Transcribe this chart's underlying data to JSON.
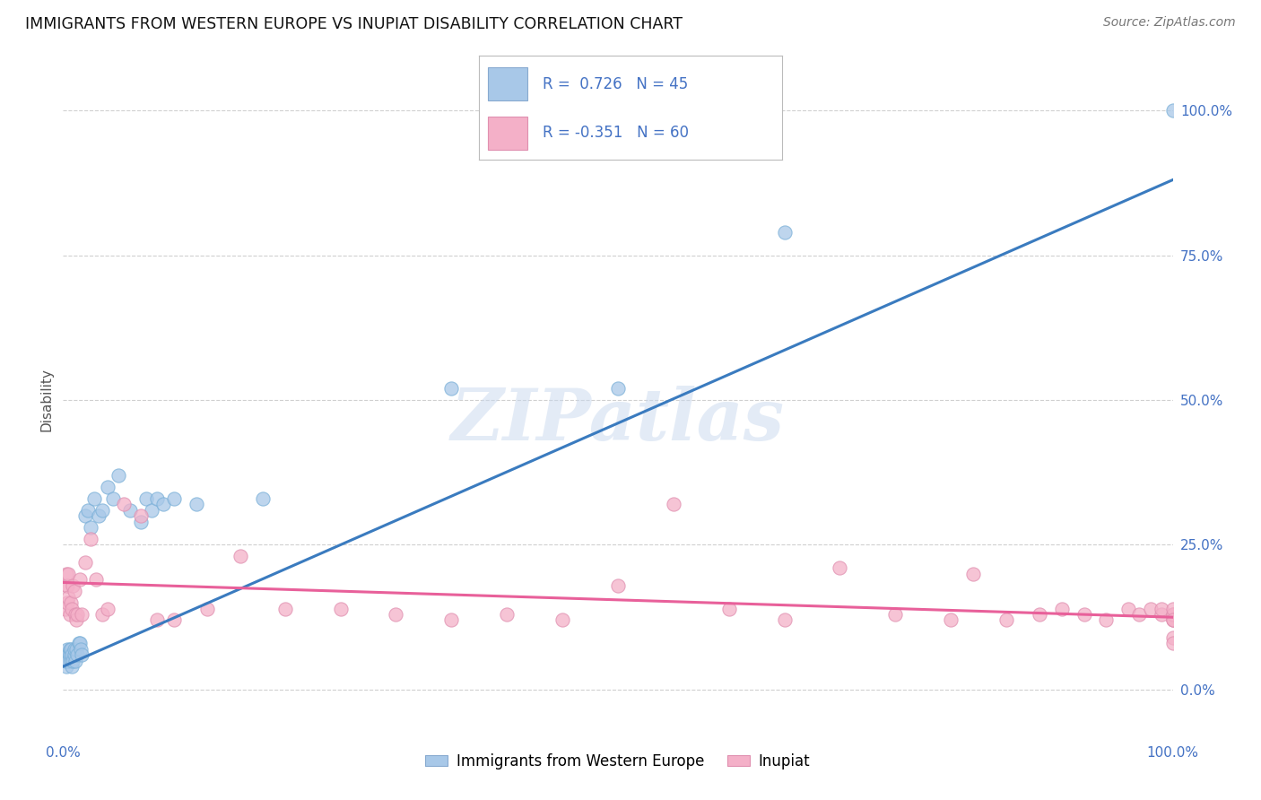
{
  "title": "IMMIGRANTS FROM WESTERN EUROPE VS INUPIAT DISABILITY CORRELATION CHART",
  "source": "Source: ZipAtlas.com",
  "ylabel": "Disability",
  "watermark": "ZIPatlas",
  "blue_R": 0.726,
  "blue_N": 45,
  "pink_R": -0.351,
  "pink_N": 60,
  "blue_color": "#a8c8e8",
  "pink_color": "#f4b0c8",
  "blue_line_color": "#3a7bbf",
  "pink_line_color": "#e8609a",
  "legend_label_blue": "Immigrants from Western Europe",
  "legend_label_pink": "Inupiat",
  "blue_scatter_x": [
    0.002,
    0.003,
    0.003,
    0.004,
    0.004,
    0.005,
    0.005,
    0.006,
    0.006,
    0.007,
    0.007,
    0.008,
    0.008,
    0.009,
    0.01,
    0.01,
    0.011,
    0.012,
    0.013,
    0.014,
    0.015,
    0.016,
    0.017,
    0.02,
    0.022,
    0.025,
    0.028,
    0.032,
    0.035,
    0.04,
    0.045,
    0.05,
    0.06,
    0.07,
    0.075,
    0.08,
    0.085,
    0.09,
    0.1,
    0.12,
    0.18,
    0.35,
    0.5,
    0.65,
    1.0
  ],
  "blue_scatter_y": [
    0.05,
    0.04,
    0.06,
    0.05,
    0.07,
    0.06,
    0.05,
    0.07,
    0.06,
    0.05,
    0.07,
    0.06,
    0.04,
    0.05,
    0.06,
    0.07,
    0.05,
    0.07,
    0.06,
    0.08,
    0.08,
    0.07,
    0.06,
    0.3,
    0.31,
    0.28,
    0.33,
    0.3,
    0.31,
    0.35,
    0.33,
    0.37,
    0.31,
    0.29,
    0.33,
    0.31,
    0.33,
    0.32,
    0.33,
    0.32,
    0.33,
    0.52,
    0.52,
    0.79,
    1.0
  ],
  "pink_scatter_x": [
    0.002,
    0.003,
    0.003,
    0.004,
    0.004,
    0.005,
    0.005,
    0.006,
    0.007,
    0.008,
    0.009,
    0.01,
    0.011,
    0.012,
    0.013,
    0.015,
    0.017,
    0.02,
    0.025,
    0.03,
    0.035,
    0.04,
    0.055,
    0.07,
    0.085,
    0.1,
    0.13,
    0.16,
    0.2,
    0.25,
    0.3,
    0.35,
    0.4,
    0.45,
    0.5,
    0.55,
    0.6,
    0.65,
    0.7,
    0.75,
    0.8,
    0.82,
    0.85,
    0.88,
    0.9,
    0.92,
    0.94,
    0.96,
    0.97,
    0.98,
    0.99,
    0.99,
    1.0,
    1.0,
    1.0,
    1.0,
    1.0,
    1.0,
    1.0,
    1.0
  ],
  "pink_scatter_y": [
    0.14,
    0.18,
    0.2,
    0.15,
    0.18,
    0.16,
    0.2,
    0.13,
    0.15,
    0.14,
    0.18,
    0.17,
    0.13,
    0.12,
    0.13,
    0.19,
    0.13,
    0.22,
    0.26,
    0.19,
    0.13,
    0.14,
    0.32,
    0.3,
    0.12,
    0.12,
    0.14,
    0.23,
    0.14,
    0.14,
    0.13,
    0.12,
    0.13,
    0.12,
    0.18,
    0.32,
    0.14,
    0.12,
    0.21,
    0.13,
    0.12,
    0.2,
    0.12,
    0.13,
    0.14,
    0.13,
    0.12,
    0.14,
    0.13,
    0.14,
    0.13,
    0.14,
    0.12,
    0.13,
    0.12,
    0.13,
    0.14,
    0.09,
    0.12,
    0.08
  ],
  "blue_line_x": [
    0.0,
    1.0
  ],
  "blue_line_y": [
    0.04,
    0.88
  ],
  "pink_line_x": [
    0.0,
    1.0
  ],
  "pink_line_y": [
    0.185,
    0.125
  ],
  "xlim": [
    0.0,
    1.0
  ],
  "ylim": [
    -0.08,
    1.08
  ],
  "right_yticks": [
    0.0,
    0.25,
    0.5,
    0.75,
    1.0
  ],
  "right_yticklabels": [
    "0.0%",
    "25.0%",
    "50.0%",
    "75.0%",
    "100.0%"
  ],
  "background_color": "#ffffff",
  "grid_color": "#d0d0d0",
  "title_color": "#111111",
  "axis_label_color": "#555555",
  "tick_color": "#4472c4"
}
